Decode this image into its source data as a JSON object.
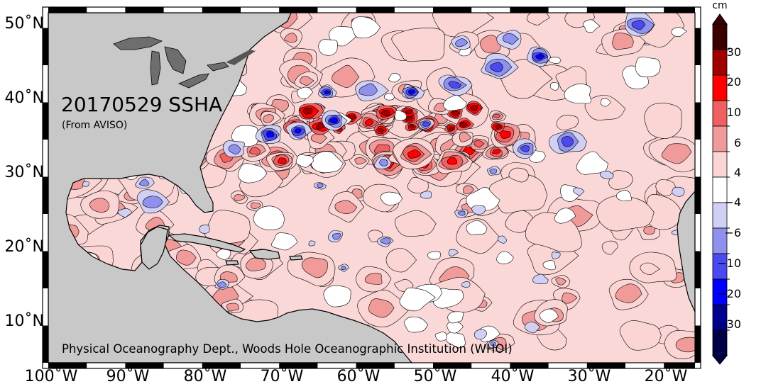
{
  "title": "20170529 SSHA",
  "subtitle": "(From AVISO)",
  "credit": "Physical Oceanography Dept., Woods Hole Oceanographic Institution (WHOI)",
  "colorbar": {
    "unit": "cm",
    "tick_labels": [
      "30",
      "20",
      "10",
      "6",
      "4",
      "−4",
      "−6",
      "−10",
      "−20",
      "−30"
    ],
    "colors": [
      "#3a0000",
      "#a00000",
      "#ff0000",
      "#f06060",
      "#f09a9a",
      "#fbd4d4",
      "#ffffff",
      "#d0d0f4",
      "#9090ee",
      "#4a4af0",
      "#0000ff",
      "#000090",
      "#000048"
    ]
  },
  "axes": {
    "lat_labels": [
      "50˚N",
      "40˚N",
      "30˚N",
      "20˚N",
      "10˚N"
    ],
    "lon_labels": [
      "100˚W",
      "90˚W",
      "80˚W",
      "70˚W",
      "60˚W",
      "50˚W",
      "40˚W",
      "30˚W",
      "20˚W"
    ]
  },
  "colors": {
    "land": "#c8c8c8",
    "lakes": "#6e6e6e",
    "frame": "#000000"
  }
}
